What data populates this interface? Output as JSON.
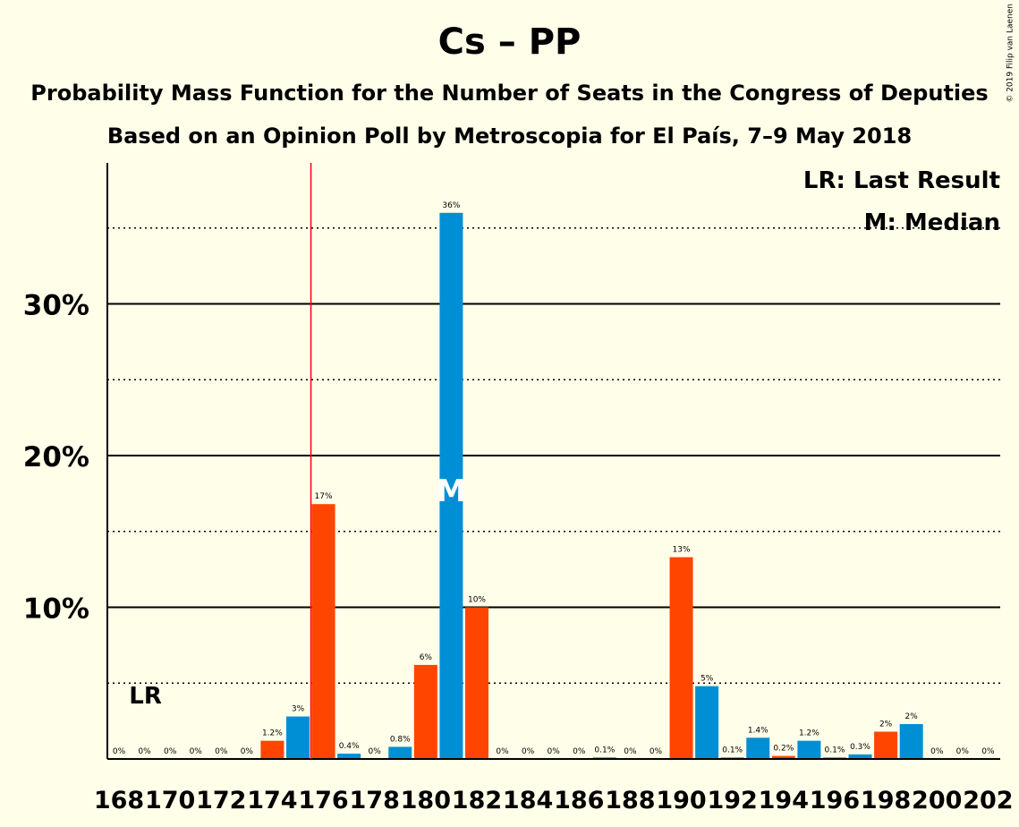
{
  "title": "Cs – PP",
  "subtitle": "Probability Mass Function for the Number of Seats in the Congress of Deputies",
  "subtitle2": "Based on an Opinion Poll by Metroscopia for El País, 7–9 May 2018",
  "copyright": "© 2019 Filip van Laenen",
  "legend": {
    "last_result": "LR: Last Result",
    "median": "M: Median"
  },
  "markers": {
    "lr_label": "LR",
    "median_label": "M",
    "lr_seat": 176,
    "median_seat": 181
  },
  "colors": {
    "cs": "#ff4500",
    "pp": "#008fd5",
    "lr_line": "#ff0000",
    "median_text": "#ffffff",
    "background": "#fefee9"
  },
  "chart_data": {
    "type": "bar",
    "x": [
      168,
      169,
      170,
      171,
      172,
      173,
      174,
      175,
      176,
      177,
      178,
      179,
      180,
      181,
      182,
      183,
      184,
      185,
      186,
      187,
      188,
      189,
      190,
      191,
      192,
      193,
      194,
      195,
      196,
      197,
      198,
      199,
      200,
      201,
      202
    ],
    "values": [
      0,
      0,
      0,
      0,
      0,
      0,
      1.2,
      2.8,
      16.8,
      0.35,
      0,
      0.8,
      6.2,
      36,
      10,
      0,
      0,
      0,
      0,
      0.1,
      0,
      0,
      13.3,
      4.8,
      0.1,
      1.4,
      0.2,
      1.2,
      0.1,
      0.3,
      1.8,
      2.3,
      0,
      0,
      0
    ],
    "labels": [
      "0%",
      "0%",
      "0%",
      "0%",
      "0%",
      "0%",
      "1.2%",
      "3%",
      "17%",
      "0.4%",
      "0%",
      "0.8%",
      "6%",
      "36%",
      "10%",
      "0%",
      "0%",
      "0%",
      "0%",
      "0.1%",
      "0%",
      "0%",
      "13%",
      "5%",
      "0.1%",
      "1.4%",
      "0.2%",
      "1.2%",
      "0.1%",
      "0.3%",
      "2%",
      "2%",
      "0%",
      "0%",
      "0%"
    ],
    "bar_colors": [
      "cs",
      "pp",
      "cs",
      "pp",
      "cs",
      "pp",
      "cs",
      "pp",
      "cs",
      "pp",
      "cs",
      "pp",
      "cs",
      "pp",
      "cs",
      "pp",
      "cs",
      "pp",
      "cs",
      "pp",
      "cs",
      "pp",
      "cs",
      "pp",
      "cs",
      "pp",
      "cs",
      "pp",
      "cs",
      "pp",
      "cs",
      "pp",
      "cs",
      "pp",
      "cs"
    ],
    "x_ticks": [
      "168",
      "170",
      "172",
      "174",
      "176",
      "178",
      "180",
      "182",
      "184",
      "186",
      "188",
      "190",
      "192",
      "194",
      "196",
      "198",
      "200",
      "202"
    ],
    "y_ticks": [
      {
        "value": 10,
        "label": "10%"
      },
      {
        "value": 20,
        "label": "20%"
      },
      {
        "value": 30,
        "label": "30%"
      }
    ],
    "minor_gridlines": [
      5,
      15,
      25,
      35
    ],
    "ylim": [
      0,
      39
    ],
    "xlabel": "",
    "ylabel": "",
    "legend_placement": "top-right"
  }
}
